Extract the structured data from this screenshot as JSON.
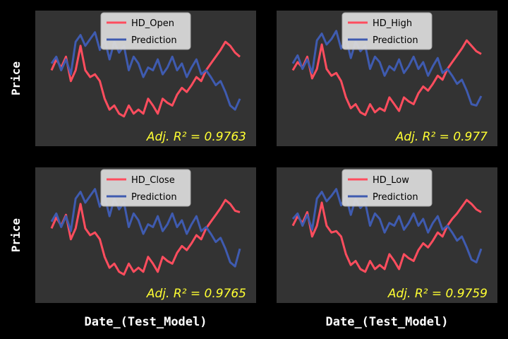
{
  "chart_data": [
    {
      "type": "line",
      "ylabel": "Price",
      "annotation": "Adj. R² = 0.9763",
      "ylim": [
        0,
        100
      ],
      "series": [
        {
          "name": "HD_Open",
          "color": "#ff4d5e",
          "values": [
            56,
            64,
            58,
            66,
            48,
            56,
            74,
            56,
            51,
            53,
            48,
            35,
            27,
            30,
            24,
            22,
            30,
            24,
            27,
            24,
            35,
            30,
            24,
            35,
            32,
            30,
            38,
            43,
            40,
            45,
            51,
            48,
            56,
            61,
            66,
            71,
            77,
            74,
            69,
            66
          ]
        },
        {
          "name": "Prediction",
          "color": "#3f5bb0",
          "values": [
            61,
            66,
            56,
            64,
            53,
            77,
            82,
            74,
            79,
            84,
            71,
            79,
            64,
            77,
            69,
            74,
            56,
            66,
            61,
            51,
            58,
            56,
            64,
            53,
            58,
            66,
            56,
            61,
            51,
            58,
            64,
            53,
            56,
            51,
            45,
            48,
            40,
            30,
            27,
            35
          ]
        }
      ]
    },
    {
      "type": "line",
      "annotation": "Adj. R² = 0.977",
      "ylim": [
        0,
        100
      ],
      "series": [
        {
          "name": "HD_High",
          "color": "#ff4d5e",
          "values": [
            56,
            62,
            58,
            66,
            50,
            57,
            75,
            57,
            52,
            54,
            48,
            36,
            28,
            31,
            25,
            23,
            31,
            25,
            28,
            26,
            36,
            31,
            26,
            36,
            33,
            31,
            39,
            44,
            41,
            46,
            52,
            49,
            57,
            62,
            67,
            72,
            78,
            74,
            70,
            68
          ]
        },
        {
          "name": "Prediction",
          "color": "#3f5bb0",
          "values": [
            61,
            67,
            57,
            64,
            54,
            78,
            83,
            75,
            79,
            85,
            72,
            80,
            65,
            77,
            70,
            74,
            57,
            66,
            62,
            52,
            59,
            56,
            64,
            54,
            59,
            66,
            57,
            62,
            52,
            59,
            65,
            54,
            57,
            52,
            46,
            49,
            41,
            31,
            30,
            37
          ]
        }
      ]
    },
    {
      "type": "line",
      "ylabel": "Price",
      "xlabel": "Date_(Test_Model)",
      "annotation": "Adj. R² = 0.9765",
      "ylim": [
        0,
        100
      ],
      "series": [
        {
          "name": "HD_Close",
          "color": "#ff4d5e",
          "values": [
            55,
            63,
            57,
            65,
            47,
            55,
            73,
            55,
            50,
            52,
            47,
            34,
            26,
            29,
            23,
            21,
            29,
            23,
            26,
            23,
            34,
            29,
            23,
            34,
            31,
            29,
            37,
            42,
            39,
            44,
            50,
            47,
            55,
            60,
            65,
            70,
            76,
            73,
            68,
            67
          ]
        },
        {
          "name": "Prediction",
          "color": "#3f5bb0",
          "values": [
            60,
            66,
            56,
            64,
            53,
            77,
            82,
            74,
            79,
            84,
            71,
            79,
            64,
            77,
            69,
            74,
            56,
            66,
            61,
            51,
            58,
            56,
            64,
            53,
            58,
            66,
            56,
            61,
            51,
            58,
            64,
            53,
            56,
            51,
            45,
            48,
            40,
            30,
            27,
            40
          ]
        }
      ]
    },
    {
      "type": "line",
      "xlabel": "Date_(Test_Model)",
      "annotation": "Adj. R² = 0.9759",
      "ylim": [
        0,
        100
      ],
      "series": [
        {
          "name": "HD_Low",
          "color": "#ff4d5e",
          "values": [
            57,
            64,
            59,
            67,
            49,
            57,
            74,
            57,
            52,
            53,
            49,
            36,
            28,
            31,
            25,
            23,
            31,
            25,
            28,
            25,
            36,
            31,
            25,
            36,
            33,
            31,
            39,
            44,
            41,
            46,
            52,
            49,
            57,
            62,
            66,
            71,
            76,
            73,
            69,
            67
          ]
        },
        {
          "name": "Prediction",
          "color": "#3f5bb0",
          "values": [
            62,
            66,
            57,
            65,
            54,
            77,
            82,
            75,
            79,
            84,
            72,
            79,
            65,
            77,
            70,
            74,
            57,
            66,
            62,
            52,
            59,
            57,
            64,
            54,
            59,
            66,
            57,
            62,
            52,
            59,
            64,
            54,
            57,
            52,
            46,
            49,
            41,
            32,
            30,
            40
          ]
        }
      ]
    }
  ]
}
